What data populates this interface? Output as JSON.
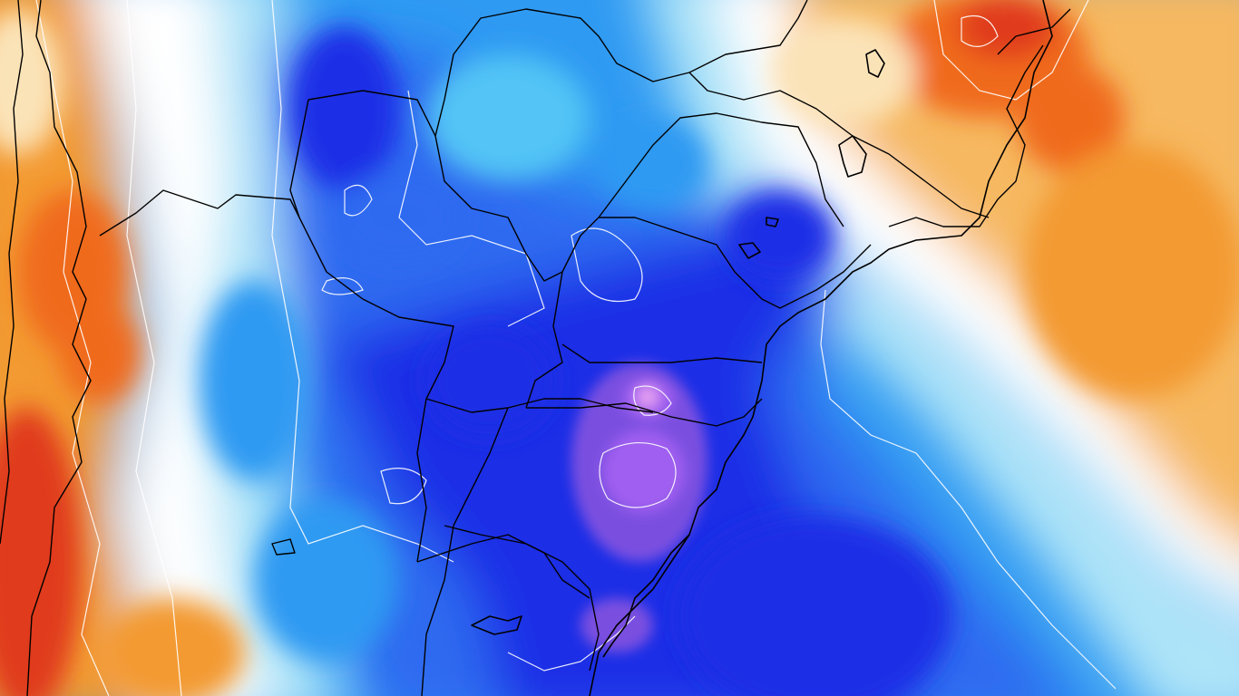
{
  "map": {
    "kind": "weather-anomaly-map",
    "region": "southern-south-america",
    "colors": {
      "cold_deep": "#7a4fe0",
      "cold_violet": "#a05ff0",
      "cold_pink": "#e6a0f0",
      "blue_dark": "#1f2fe6",
      "blue": "#2e6af0",
      "blue_mid": "#2f9af2",
      "blue_light": "#52c4f5",
      "cyan_light": "#aee4f8",
      "near_zero": "#ffffff",
      "warm_light": "#fbe3b8",
      "warm": "#f6b860",
      "orange": "#f39a32",
      "orange_dark": "#f06a1c",
      "red": "#e03a1a",
      "coast_and_borders": "#000000",
      "contours": "#ffffff"
    },
    "layers": [
      "anomaly-fill",
      "white-contours",
      "country-borders",
      "state-borders",
      "coastline"
    ]
  }
}
